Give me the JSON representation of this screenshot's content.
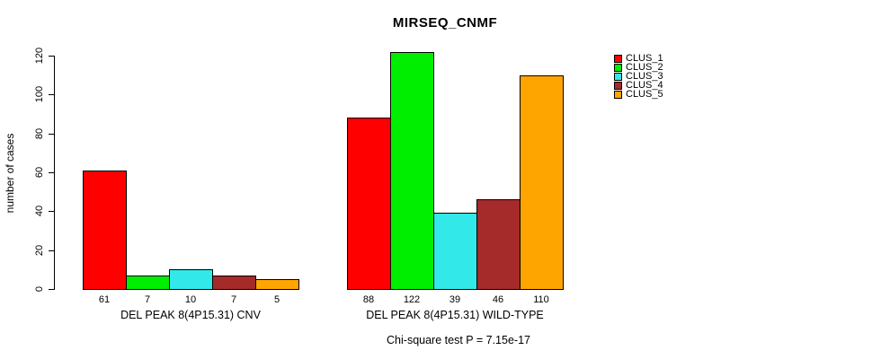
{
  "title": "MIRSEQ_CNMF",
  "ylabel": "number of cases",
  "footer": "Chi-square test P = 7.15e-17",
  "chart_data": {
    "type": "bar",
    "title": "MIRSEQ_CNMF",
    "ylabel": "number of cases",
    "xlabel": "",
    "ylim": [
      0,
      120
    ],
    "yticks": [
      0,
      20,
      40,
      60,
      80,
      100,
      120
    ],
    "grid": false,
    "legend_position": "top-right",
    "series_names": [
      "CLUS_1",
      "CLUS_2",
      "CLUS_3",
      "CLUS_4",
      "CLUS_5"
    ],
    "colors": [
      "#ff0000",
      "#00ee00",
      "#33e8e8",
      "#a52a2a",
      "#ffa500"
    ],
    "groups": [
      {
        "label": "DEL PEAK  8(4P15.31) CNV",
        "values": [
          61,
          7,
          10,
          7,
          5
        ]
      },
      {
        "label": "DEL PEAK  8(4P15.31) WILD-TYPE",
        "values": [
          88,
          122,
          39,
          46,
          110
        ]
      }
    ],
    "annotation": "Chi-square test P = 7.15e-17"
  }
}
